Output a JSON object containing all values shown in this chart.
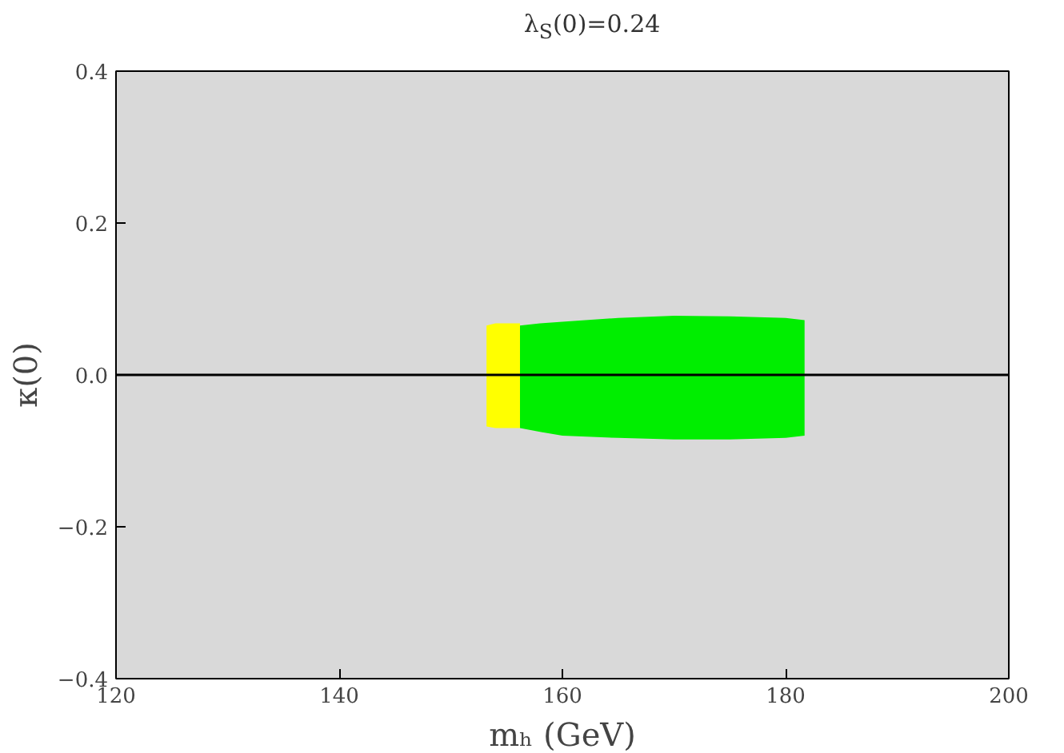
{
  "chart_data": {
    "type": "area",
    "title": "λ$_{S}$(0)=0.24",
    "xlabel": "mₕ (GeV)",
    "ylabel": "κ(0)",
    "xlim": [
      120,
      200
    ],
    "xticks": [
      120,
      140,
      160,
      180,
      200
    ],
    "ylim": [
      -0.4,
      0.4
    ],
    "yticks": [
      {
        "value": -0.4,
        "label": "−0.4"
      },
      {
        "value": -0.2,
        "label": "−0.2"
      },
      {
        "value": 0,
        "label": "0.0"
      },
      0.2,
      0.4
    ],
    "grid": false,
    "ref_lines": [
      {
        "axis": "y",
        "value": 0,
        "color": "#000000"
      }
    ],
    "series": [
      {
        "color": "#ffff00",
        "x": [
          153.2,
          154,
          155,
          156.2
        ],
        "values": [
          0.065,
          0.068,
          0.068,
          0.068
        ]
      },
      {
        "color": "#ffff00",
        "x": [
          153.2,
          154,
          155,
          156.2
        ],
        "values": [
          -0.068,
          -0.07,
          -0.07,
          -0.07
        ]
      },
      {
        "color": "#00ee00",
        "x": [
          156.2,
          158,
          160,
          165,
          170,
          175,
          180,
          181.7
        ],
        "values": [
          0.065,
          0.068,
          0.07,
          0.075,
          0.078,
          0.077,
          0.075,
          0.072
        ]
      },
      {
        "color": "#00ee00",
        "x": [
          156.2,
          158,
          160,
          165,
          170,
          175,
          180,
          181.7
        ],
        "values": [
          -0.07,
          -0.075,
          -0.08,
          -0.083,
          -0.085,
          -0.085,
          -0.083,
          -0.08
        ]
      }
    ]
  }
}
